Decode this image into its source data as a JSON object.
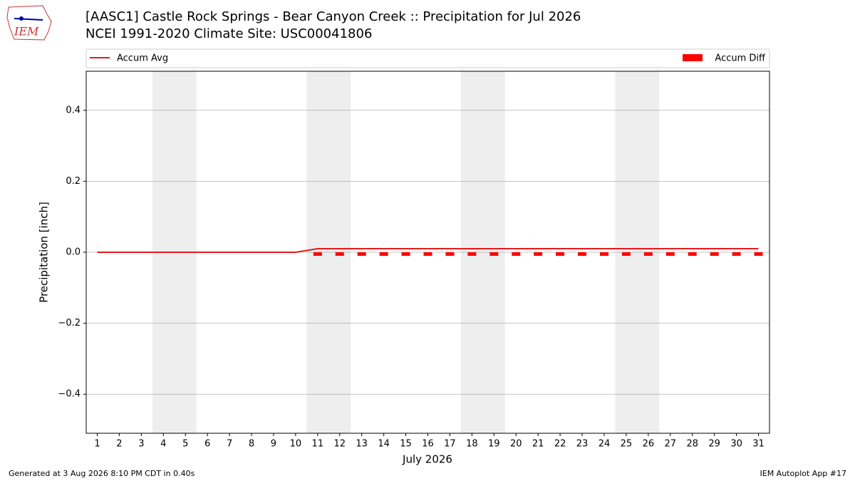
{
  "chart_data": {
    "type": "line_bar",
    "logo": "IEM",
    "title": "[AASC1] Castle Rock Springs - Bear Canyon Creek :: Precipitation for Jul 2026",
    "subtitle": "NCEI 1991-2020 Climate Site: USC00041806",
    "x_label": "July 2026",
    "y_label": "Precipitation [inch]",
    "footer_left": "Generated at 3 Aug 2026 8:10 PM CDT in 0.40s",
    "footer_right": "IEM Autoplot App #17",
    "x": [
      1,
      2,
      3,
      4,
      5,
      6,
      7,
      8,
      9,
      10,
      11,
      12,
      13,
      14,
      15,
      16,
      17,
      18,
      19,
      20,
      21,
      22,
      23,
      24,
      25,
      26,
      27,
      28,
      29,
      30,
      31
    ],
    "series": [
      {
        "name": "Accum Avg",
        "kind": "line",
        "color": "#e31a1c",
        "values": [
          0,
          0,
          0,
          0,
          0,
          0,
          0,
          0,
          0,
          0,
          0.01,
          0.01,
          0.01,
          0.01,
          0.01,
          0.01,
          0.01,
          0.01,
          0.01,
          0.01,
          0.01,
          0.01,
          0.01,
          0.01,
          0.01,
          0.01,
          0.01,
          0.01,
          0.01,
          0.01,
          0.01
        ]
      },
      {
        "name": "Accum Diff",
        "kind": "bar",
        "color": "#ff0000",
        "values": [
          null,
          null,
          null,
          null,
          null,
          null,
          null,
          null,
          null,
          null,
          -0.01,
          -0.01,
          -0.01,
          -0.01,
          -0.01,
          -0.01,
          -0.01,
          -0.01,
          -0.01,
          -0.01,
          -0.01,
          -0.01,
          -0.01,
          -0.01,
          -0.01,
          -0.01,
          -0.01,
          -0.01,
          -0.01,
          -0.01,
          -0.01
        ]
      }
    ],
    "weekend_spans": [
      [
        3.5,
        5.5
      ],
      [
        10.5,
        12.5
      ],
      [
        17.5,
        19.5
      ],
      [
        24.5,
        26.5
      ]
    ],
    "xlim": [
      0.5,
      31.5
    ],
    "ylim": [
      -0.51,
      0.51
    ],
    "xticks": [
      1,
      2,
      3,
      4,
      5,
      6,
      7,
      8,
      9,
      10,
      11,
      12,
      13,
      14,
      15,
      16,
      17,
      18,
      19,
      20,
      21,
      22,
      23,
      24,
      25,
      26,
      27,
      28,
      29,
      30,
      31
    ],
    "yticks": [
      {
        "value": -0.4,
        "label": "−0.4"
      },
      {
        "value": -0.2,
        "label": "−0.2"
      },
      {
        "value": 0,
        "label": "0.0"
      },
      0.2,
      0.4
    ],
    "grid": true
  }
}
